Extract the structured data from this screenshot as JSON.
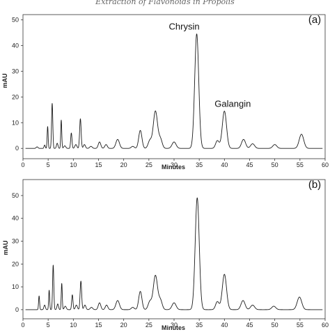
{
  "header": "Extraction of Flavonoids in Propolis",
  "chart_data": [
    {
      "type": "line",
      "panel_label": "(a)",
      "xlabel": "Minutes",
      "ylabel": "mAU",
      "xlim": [
        0,
        60
      ],
      "ylim": [
        -4,
        52
      ],
      "xticks": [
        "0",
        "5",
        "10",
        "15",
        "20",
        "25",
        "30",
        "35",
        "40",
        "45",
        "50",
        "55",
        "60"
      ],
      "yticks": [
        "0",
        "10",
        "20",
        "30",
        "40",
        "50"
      ],
      "baseline": 0,
      "peaks": [
        {
          "rt": 2.8,
          "height": 0.6,
          "width": 0.18
        },
        {
          "rt": 4.3,
          "height": 1.3,
          "width": 0.12
        },
        {
          "rt": 4.9,
          "height": 8.5,
          "width": 0.1
        },
        {
          "rt": 5.8,
          "height": 17.5,
          "width": 0.12
        },
        {
          "rt": 6.8,
          "height": 2.0,
          "width": 0.15
        },
        {
          "rt": 7.6,
          "height": 11.0,
          "width": 0.1
        },
        {
          "rt": 8.3,
          "height": 1.0,
          "width": 0.2
        },
        {
          "rt": 9.6,
          "height": 6.0,
          "width": 0.13
        },
        {
          "rt": 10.5,
          "height": 1.5,
          "width": 0.2
        },
        {
          "rt": 11.4,
          "height": 11.5,
          "width": 0.15
        },
        {
          "rt": 12.2,
          "height": 1.5,
          "width": 0.2
        },
        {
          "rt": 13.5,
          "height": 0.8,
          "width": 0.25
        },
        {
          "rt": 15.2,
          "height": 2.5,
          "width": 0.25
        },
        {
          "rt": 16.5,
          "height": 1.5,
          "width": 0.25
        },
        {
          "rt": 18.8,
          "height": 3.5,
          "width": 0.35
        },
        {
          "rt": 21.8,
          "height": 0.8,
          "width": 0.3
        },
        {
          "rt": 23.3,
          "height": 7.0,
          "width": 0.32
        },
        {
          "rt": 25.2,
          "height": 3.0,
          "width": 0.35
        },
        {
          "rt": 26.3,
          "height": 14.5,
          "width": 0.42
        },
        {
          "rt": 27.3,
          "height": 3.5,
          "width": 0.35
        },
        {
          "rt": 30.0,
          "height": 2.5,
          "width": 0.4
        },
        {
          "rt": 34.5,
          "height": 44.5,
          "width": 0.4
        },
        {
          "rt": 38.6,
          "height": 3.0,
          "width": 0.35
        },
        {
          "rt": 40.0,
          "height": 14.5,
          "width": 0.42
        },
        {
          "rt": 43.8,
          "height": 3.5,
          "width": 0.4
        },
        {
          "rt": 45.6,
          "height": 1.8,
          "width": 0.4
        },
        {
          "rt": 50.0,
          "height": 1.5,
          "width": 0.4
        },
        {
          "rt": 55.3,
          "height": 5.5,
          "width": 0.45
        }
      ],
      "annotations": [
        {
          "text": "Chrysin",
          "x": 34.5,
          "y": 44.5
        },
        {
          "text": "Galangin",
          "x": 40.0,
          "y": 14.5
        }
      ]
    },
    {
      "type": "line",
      "panel_label": "(b)",
      "xlabel": "Minutes",
      "ylabel": "mAU",
      "xlim": [
        0,
        60
      ],
      "ylim": [
        -4,
        57
      ],
      "xticks": [
        "0",
        "5",
        "10",
        "15",
        "20",
        "25",
        "30",
        "35",
        "40",
        "45",
        "50",
        "55",
        "60"
      ],
      "yticks": [
        "0",
        "10",
        "20",
        "30",
        "40",
        "50"
      ],
      "baseline": 0,
      "peaks": [
        {
          "rt": 3.2,
          "height": 6.0,
          "width": 0.1
        },
        {
          "rt": 4.3,
          "height": 2.0,
          "width": 0.15
        },
        {
          "rt": 5.2,
          "height": 8.5,
          "width": 0.1
        },
        {
          "rt": 6.0,
          "height": 19.5,
          "width": 0.12
        },
        {
          "rt": 6.9,
          "height": 2.5,
          "width": 0.15
        },
        {
          "rt": 7.7,
          "height": 11.5,
          "width": 0.1
        },
        {
          "rt": 8.4,
          "height": 1.5,
          "width": 0.2
        },
        {
          "rt": 9.8,
          "height": 6.5,
          "width": 0.13
        },
        {
          "rt": 10.6,
          "height": 2.0,
          "width": 0.2
        },
        {
          "rt": 11.5,
          "height": 12.5,
          "width": 0.15
        },
        {
          "rt": 12.3,
          "height": 2.0,
          "width": 0.2
        },
        {
          "rt": 13.6,
          "height": 1.0,
          "width": 0.25
        },
        {
          "rt": 15.2,
          "height": 3.0,
          "width": 0.25
        },
        {
          "rt": 16.6,
          "height": 2.0,
          "width": 0.25
        },
        {
          "rt": 18.8,
          "height": 4.0,
          "width": 0.35
        },
        {
          "rt": 21.8,
          "height": 1.0,
          "width": 0.3
        },
        {
          "rt": 23.3,
          "height": 8.0,
          "width": 0.32
        },
        {
          "rt": 25.2,
          "height": 3.5,
          "width": 0.35
        },
        {
          "rt": 26.3,
          "height": 15.0,
          "width": 0.42
        },
        {
          "rt": 27.3,
          "height": 4.0,
          "width": 0.35
        },
        {
          "rt": 30.0,
          "height": 3.0,
          "width": 0.4
        },
        {
          "rt": 34.6,
          "height": 49.0,
          "width": 0.4
        },
        {
          "rt": 38.6,
          "height": 3.5,
          "width": 0.35
        },
        {
          "rt": 40.0,
          "height": 15.5,
          "width": 0.42
        },
        {
          "rt": 43.7,
          "height": 4.0,
          "width": 0.4
        },
        {
          "rt": 45.6,
          "height": 2.0,
          "width": 0.4
        },
        {
          "rt": 49.8,
          "height": 1.5,
          "width": 0.4
        },
        {
          "rt": 54.9,
          "height": 5.5,
          "width": 0.45
        }
      ],
      "annotations": []
    }
  ]
}
